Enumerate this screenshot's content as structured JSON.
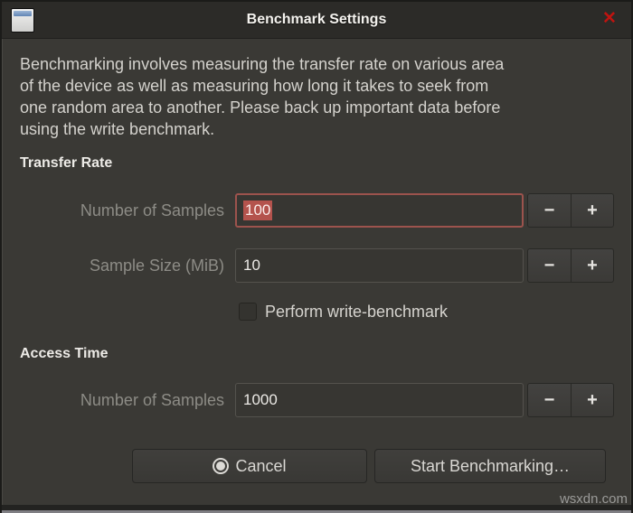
{
  "window": {
    "title": "Benchmark Settings",
    "close_glyph": "✕"
  },
  "description_lines": [
    "Benchmarking involves measuring the transfer rate on various area",
    "of the device as well as measuring how long it takes to seek from",
    "one random area to another. Please back up important data before",
    "using the write benchmark."
  ],
  "transfer_rate": {
    "heading": "Transfer Rate",
    "num_samples": {
      "label": "Number of Samples",
      "value": "100"
    },
    "sample_size": {
      "label": "Sample Size (MiB)",
      "value": "10"
    },
    "write_benchmark": {
      "label": "Perform write-benchmark",
      "checked": false
    }
  },
  "access_time": {
    "heading": "Access Time",
    "num_samples": {
      "label": "Number of Samples",
      "value": "1000"
    }
  },
  "spin": {
    "minus": "−",
    "plus": "+"
  },
  "buttons": {
    "cancel": "Cancel",
    "start": "Start Benchmarking…"
  },
  "watermark": "wsxdn.com",
  "colors": {
    "selection_background": "#b4534d",
    "focused_entry_border": "#9c534d",
    "close_button_red": "#bf1410",
    "dialog_background": "#3a3935",
    "titlebar_background": "#2c2b28"
  }
}
